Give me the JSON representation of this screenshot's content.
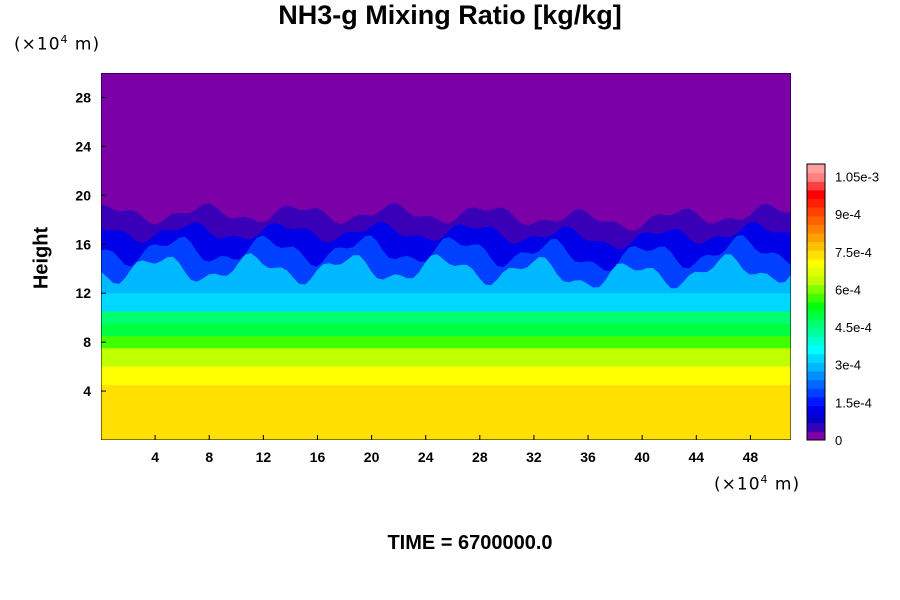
{
  "chart_data": {
    "type": "heatmap",
    "title": "NH3-g Mixing Ratio [kg/kg]",
    "ylabel": "Height",
    "xlabel": "",
    "x_unit_base": "(×10",
    "x_unit_exp": "4",
    "x_unit_tail": " m)",
    "y_unit_base": "(×10",
    "y_unit_exp": "4",
    "y_unit_tail": " m)",
    "xlim": [
      0,
      51
    ],
    "ylim": [
      0,
      30
    ],
    "x_ticks": [
      4,
      8,
      12,
      16,
      20,
      24,
      28,
      32,
      36,
      40,
      44,
      48
    ],
    "y_ticks": [
      4,
      8,
      12,
      16,
      20,
      24,
      28
    ],
    "colorbar": {
      "vmin": 0,
      "vmax": 0.0011,
      "tick_values": [
        0,
        0.00015,
        0.0003,
        0.00045,
        0.0006,
        0.00075,
        0.0009,
        0.00105
      ],
      "tick_labels": [
        "0",
        "1.5e-4",
        "3e-4",
        "4.5e-4",
        "6e-4",
        "7.5e-4",
        "9e-4",
        "1.05e-3"
      ],
      "colors": [
        "#7b00a8",
        "#3a00b8",
        "#0000c8",
        "#0000e8",
        "#0018ff",
        "#0040ff",
        "#0068ff",
        "#0090ff",
        "#00b8ff",
        "#00d8ff",
        "#00ffff",
        "#00ffd0",
        "#00ffa0",
        "#00ff70",
        "#00ff40",
        "#00ff10",
        "#40ff00",
        "#80ff00",
        "#c0ff00",
        "#e0ff00",
        "#ffff00",
        "#ffe000",
        "#ffc000",
        "#ffa000",
        "#ff8000",
        "#ff6000",
        "#ff4000",
        "#ff2000",
        "#ff0000",
        "#ff4040",
        "#ff8080",
        "#ffa0a0"
      ]
    },
    "profile": [
      {
        "height_range": [
          0,
          4.5
        ],
        "value": 0.00075
      },
      {
        "height_range": [
          4.5,
          6
        ],
        "value": 0.0007
      },
      {
        "height_range": [
          6,
          7.5
        ],
        "value": 0.00063
      },
      {
        "height_range": [
          7.5,
          8.5
        ],
        "value": 0.00058
      },
      {
        "height_range": [
          8.5,
          9.5
        ],
        "value": 0.0005
      },
      {
        "height_range": [
          9.5,
          10.5
        ],
        "value": 0.00045
      },
      {
        "height_range": [
          10.5,
          12
        ],
        "value": 0.00033
      },
      {
        "height_range": [
          12,
          14
        ],
        "value": 0.00028
      },
      {
        "height_range": [
          14,
          15.5
        ],
        "value": 0.0002
      },
      {
        "height_range": [
          15.5,
          17
        ],
        "value": 0.00013
      },
      {
        "height_range": [
          17,
          18.5
        ],
        "value": 5e-05
      },
      {
        "height_range": [
          18.5,
          30
        ],
        "value": 0
      }
    ]
  },
  "time_label": "TIME = 6700000.0"
}
